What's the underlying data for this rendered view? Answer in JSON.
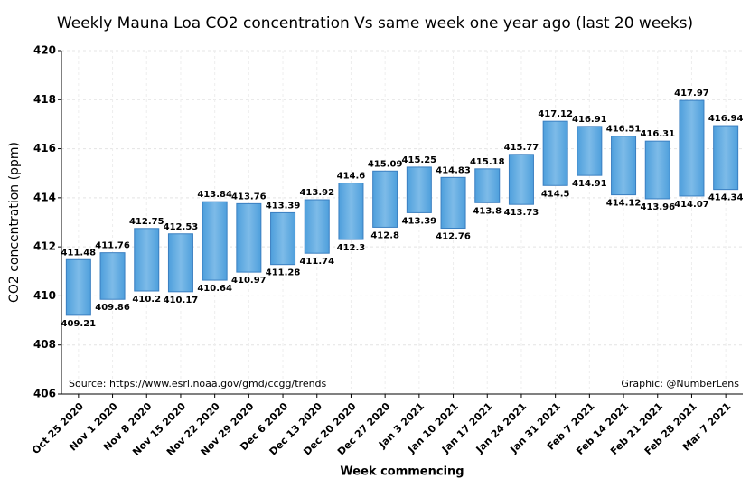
{
  "chart_data": {
    "type": "floating-bar",
    "title": "Weekly Mauna Loa CO2 concentration Vs same week one year ago (last 20 weeks)",
    "y_label": "CO2 concentration (ppm)",
    "x_label": "Week commencing",
    "source_note": "Source: https://www.esrl.noaa.gov/gmd/ccgg/trends",
    "credit_note": "Graphic: @NumberLens",
    "categories": [
      "Oct 25 2020",
      "Nov 1 2020",
      "Nov 8 2020",
      "Nov 15 2020",
      "Nov 22 2020",
      "Nov 29 2020",
      "Dec 6 2020",
      "Dec 13 2020",
      "Dec 20 2020",
      "Dec 27 2020",
      "Jan 3 2021",
      "Jan 10 2021",
      "Jan 17 2021",
      "Jan 24 2021",
      "Jan 31 2021",
      "Feb 7 2021",
      "Feb 14 2021",
      "Feb 21 2021",
      "Feb 28 2021",
      "Mar 7 2021"
    ],
    "low": [
      409.21,
      409.86,
      410.2,
      410.17,
      410.64,
      410.97,
      411.28,
      411.74,
      412.3,
      412.8,
      413.39,
      412.76,
      413.8,
      413.73,
      414.5,
      414.91,
      414.12,
      413.96,
      414.07,
      414.34
    ],
    "high": [
      411.48,
      411.76,
      412.75,
      412.53,
      413.84,
      413.76,
      413.39,
      413.92,
      414.6,
      415.09,
      415.25,
      414.83,
      415.18,
      415.77,
      417.12,
      416.91,
      416.51,
      416.31,
      417.97,
      416.94
    ],
    "color": "#7dbbe8",
    "edge_color": "#3a7fc1",
    "ylim": [
      406,
      420
    ],
    "yticks": [
      406,
      408,
      410,
      412,
      414,
      416,
      418,
      420
    ],
    "grid": true
  }
}
